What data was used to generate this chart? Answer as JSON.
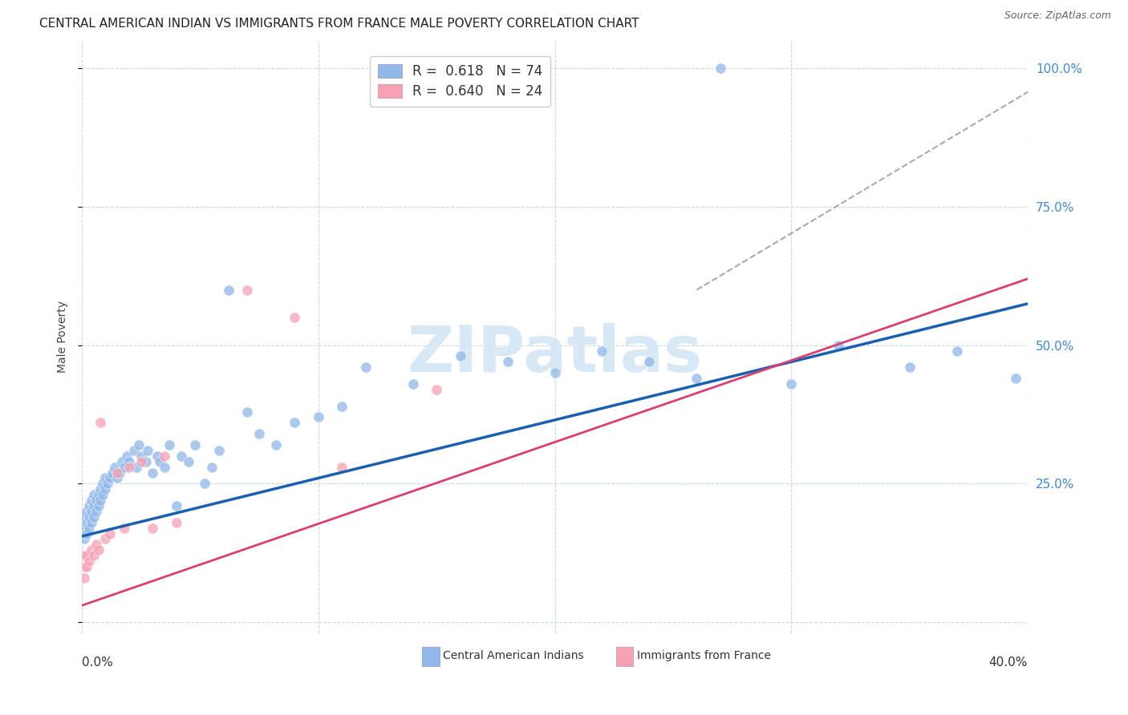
{
  "title": "CENTRAL AMERICAN INDIAN VS IMMIGRANTS FROM FRANCE MALE POVERTY CORRELATION CHART",
  "source": "Source: ZipAtlas.com",
  "ylabel": "Male Poverty",
  "legend1_r": "0.618",
  "legend1_n": "74",
  "legend2_r": "0.640",
  "legend2_n": "24",
  "series1_color": "#91b8e8",
  "series2_color": "#f5a0b5",
  "trendline1_color": "#1a5fb0",
  "trendline2_color": "#d94070",
  "trendline_dashed_color": "#aaaaaa",
  "watermark": "ZIPatlas",
  "watermark_color": "#d8e8f5",
  "xlim": [
    0.0,
    0.4
  ],
  "ylim": [
    -0.02,
    1.05
  ],
  "blue_trendline": [
    0.0,
    0.155,
    0.4,
    0.575
  ],
  "pink_trendline": [
    0.0,
    0.03,
    0.4,
    0.62
  ],
  "dash_trendline": [
    0.26,
    0.6,
    0.405,
    0.97
  ],
  "blue_x": [
    0.001,
    0.001,
    0.001,
    0.002,
    0.002,
    0.002,
    0.003,
    0.003,
    0.003,
    0.004,
    0.004,
    0.004,
    0.005,
    0.005,
    0.005,
    0.006,
    0.006,
    0.007,
    0.007,
    0.008,
    0.008,
    0.009,
    0.009,
    0.01,
    0.01,
    0.011,
    0.012,
    0.013,
    0.014,
    0.015,
    0.016,
    0.017,
    0.018,
    0.019,
    0.02,
    0.022,
    0.023,
    0.024,
    0.025,
    0.027,
    0.028,
    0.03,
    0.032,
    0.033,
    0.035,
    0.037,
    0.04,
    0.042,
    0.045,
    0.048,
    0.052,
    0.055,
    0.058,
    0.062,
    0.07,
    0.075,
    0.082,
    0.09,
    0.1,
    0.11,
    0.12,
    0.14,
    0.16,
    0.18,
    0.2,
    0.22,
    0.24,
    0.26,
    0.3,
    0.32,
    0.35,
    0.37,
    0.395,
    0.27
  ],
  "blue_y": [
    0.15,
    0.17,
    0.19,
    0.16,
    0.18,
    0.2,
    0.17,
    0.19,
    0.21,
    0.18,
    0.2,
    0.22,
    0.19,
    0.21,
    0.23,
    0.2,
    0.22,
    0.21,
    0.23,
    0.22,
    0.24,
    0.23,
    0.25,
    0.24,
    0.26,
    0.25,
    0.26,
    0.27,
    0.28,
    0.26,
    0.27,
    0.29,
    0.28,
    0.3,
    0.29,
    0.31,
    0.28,
    0.32,
    0.3,
    0.29,
    0.31,
    0.27,
    0.3,
    0.29,
    0.28,
    0.32,
    0.21,
    0.3,
    0.29,
    0.32,
    0.25,
    0.28,
    0.31,
    0.6,
    0.38,
    0.34,
    0.32,
    0.36,
    0.37,
    0.39,
    0.46,
    0.43,
    0.48,
    0.47,
    0.45,
    0.49,
    0.47,
    0.44,
    0.43,
    0.5,
    0.46,
    0.49,
    0.44,
    1.0
  ],
  "pink_x": [
    0.001,
    0.001,
    0.001,
    0.002,
    0.002,
    0.003,
    0.004,
    0.005,
    0.006,
    0.007,
    0.008,
    0.01,
    0.012,
    0.015,
    0.018,
    0.02,
    0.025,
    0.03,
    0.035,
    0.04,
    0.07,
    0.09,
    0.11,
    0.15
  ],
  "pink_y": [
    0.08,
    0.1,
    0.12,
    0.1,
    0.12,
    0.11,
    0.13,
    0.12,
    0.14,
    0.13,
    0.36,
    0.15,
    0.16,
    0.27,
    0.17,
    0.28,
    0.29,
    0.17,
    0.3,
    0.18,
    0.6,
    0.55,
    0.28,
    0.42
  ]
}
